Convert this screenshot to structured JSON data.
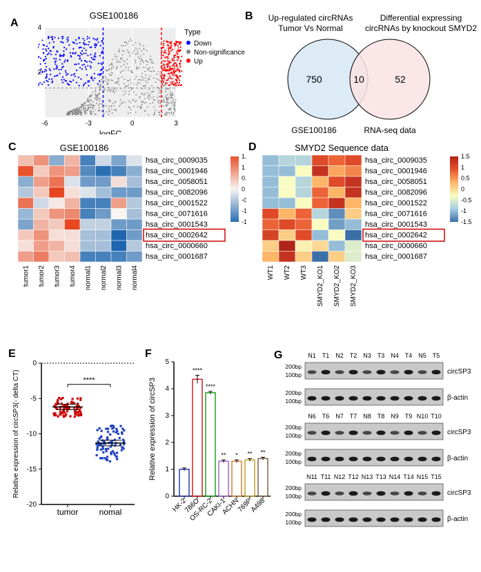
{
  "panelA": {
    "label": "A",
    "title": "GSE100186",
    "xlabel": "logFC",
    "ylabel": "logfdr",
    "legend_title": "Type",
    "legend_items": [
      "Down",
      "Non-significance",
      "Up"
    ],
    "legend_colors": [
      "#0000ff",
      "#808080",
      "#ff0000"
    ],
    "xlim": [
      -6,
      3
    ],
    "ylim": [
      0,
      4
    ],
    "xticks": [
      -6,
      -3,
      0,
      3
    ],
    "yticks": [
      2,
      4
    ],
    "threshold_lines_x": [
      -2,
      2
    ],
    "threshold_line_y": 1.3,
    "threshold_color": "#808080",
    "background_color": "#eeeeee",
    "grid_color": "#ffffff"
  },
  "panelB": {
    "label": "B",
    "left_title_line1": "Up-regulated circRNAs",
    "left_title_line2": "Tumor Vs Normal",
    "right_title_line1": "Differential expressing",
    "right_title_line2": "circRNAs by knockout SMYD2",
    "left_count": "750",
    "overlap_count": "10",
    "right_count": "52",
    "left_label": "GSE100186",
    "right_label": "RNA-seq data",
    "left_fill": "#d6e8f5",
    "right_fill": "#fae3e3"
  },
  "panelC": {
    "label": "C",
    "title": "GSE100186",
    "rows": [
      "hsa_circ_0009035",
      "hsa_circ_0001946",
      "hsa_circ_0058051",
      "hsa_circ_0082096",
      "hsa_circ_0001522",
      "hsa_circ_0071616",
      "hsa_circ_0001543",
      "hsa_circ_0002642",
      "hsa_circ_0000660",
      "hsa_circ_0001687"
    ],
    "cols": [
      "tumor1",
      "tumor2",
      "tumor3",
      "tumor4",
      "normal1",
      "normal2",
      "normal3",
      "normal4"
    ],
    "highlight_row_index": 7,
    "legend_min": -1.5,
    "legend_max": 1.5,
    "legend_ticks": [
      1.5,
      1,
      0.5,
      0,
      -0.5,
      -1,
      -1.5
    ],
    "colorscale_low": "#2b6fb3",
    "colorscale_mid": "#f7f4f2",
    "colorscale_high": "#e8522d",
    "data": [
      [
        0.5,
        0.9,
        -0.8,
        0.6,
        -1.3,
        -0.3,
        -0.9,
        -0.2
      ],
      [
        1.5,
        0.4,
        0.9,
        0.8,
        -1.2,
        -1.5,
        -1.3,
        -0.8
      ],
      [
        -0.8,
        0.8,
        1.2,
        -0.2,
        -1.0,
        -1.0,
        0.2,
        -0.6
      ],
      [
        -0.5,
        0.4,
        1.6,
        0.2,
        -0.2,
        -0.6,
        -1.0,
        -1.0
      ],
      [
        1.2,
        -0.3,
        0.1,
        0.6,
        -1.3,
        -1.3,
        0.8,
        -0.5
      ],
      [
        -0.7,
        0.4,
        0.9,
        1.0,
        -1.3,
        -1.0,
        0.0,
        -0.6
      ],
      [
        -0.9,
        0.6,
        0.4,
        1.6,
        -0.4,
        -0.4,
        -1.0,
        -1.0
      ],
      [
        0.4,
        0.9,
        0.2,
        0.2,
        -0.6,
        -0.6,
        -1.6,
        -1.0
      ],
      [
        0.2,
        0.8,
        0.6,
        0.2,
        -0.6,
        -0.6,
        -1.6,
        -0.5
      ],
      [
        0.8,
        1.1,
        0.4,
        0.5,
        -1.3,
        -1.3,
        -1.3,
        -1.0
      ]
    ]
  },
  "panelD": {
    "label": "D",
    "title": "SMYD2  Sequence data",
    "rows": [
      "hsa_circ_0009035",
      "hsa_circ_0001946",
      "hsa_circ_0058051",
      "hsa_circ_0082096",
      "hsa_circ_0001522",
      "hsa_circ_0071616",
      "hsa_circ_0001543",
      "hsa_circ_0002642",
      "hsa_circ_0000660",
      "hsa_circ_0001687"
    ],
    "cols": [
      "WT1",
      "WT2",
      "WT3",
      "SMYD2_KO1",
      "SMYD2_KO2",
      "SMYD2_KO3"
    ],
    "highlight_row_index": 7,
    "legend_min": -1.5,
    "legend_max": 1.5,
    "legend_ticks": [
      1.5,
      1,
      0.5,
      0,
      -0.5,
      -1,
      -1.5
    ],
    "colorscale_stops": [
      "#3b6fa8",
      "#a7cde0",
      "#f8fcc0",
      "#fdb667",
      "#e8522d",
      "#b02418"
    ],
    "data": [
      [
        -1.0,
        -0.8,
        -0.8,
        1.0,
        0.8,
        1.0
      ],
      [
        -1.0,
        -1.0,
        -0.3,
        1.3,
        0.4,
        0.6
      ],
      [
        -1.0,
        -0.3,
        -0.8,
        0.3,
        1.0,
        1.3
      ],
      [
        -1.0,
        -0.3,
        -0.8,
        0.8,
        0.3,
        1.3
      ],
      [
        -1.0,
        -1.0,
        -0.3,
        0.8,
        1.3,
        0.3
      ],
      [
        1.0,
        0.3,
        0.8,
        -0.8,
        -1.3,
        0.1
      ],
      [
        0.8,
        1.0,
        0.8,
        -0.3,
        -1.2,
        -1.0
      ],
      [
        1.1,
        0.1,
        1.0,
        -1.0,
        -0.3,
        -1.5
      ],
      [
        0.1,
        1.6,
        -0.2,
        0.0,
        -1.0,
        -0.5
      ],
      [
        0.3,
        1.3,
        0.1,
        -1.5,
        0.1,
        -0.5
      ]
    ]
  },
  "panelE": {
    "label": "E",
    "ylabel": "Relative expression of circSP3(- delta CT)",
    "groups": [
      "tumor",
      "nomal"
    ],
    "sig": "****",
    "ylim": [
      -20,
      0
    ],
    "yticks": [
      0,
      -5,
      -10,
      -15,
      -20
    ],
    "colors": [
      "#cc0000",
      "#2040c0"
    ],
    "tumor_mean": -6.2,
    "normal_mean": -11.3
  },
  "panelF": {
    "label": "F",
    "ylabel": "Relative expression of circSP3",
    "categories": [
      "HK-2",
      "786O",
      "OS-RC-2",
      "CAKI-1",
      "ACHN",
      "769P",
      "A498"
    ],
    "values": [
      1.0,
      4.35,
      3.85,
      1.3,
      1.3,
      1.35,
      1.4
    ],
    "errors": [
      0.05,
      0.15,
      0.05,
      0.05,
      0.05,
      0.05,
      0.05
    ],
    "sig": [
      "",
      "****",
      "****",
      "**",
      "*",
      "**",
      "**"
    ],
    "colors": [
      "#2b3fb0",
      "#d02020",
      "#20a020",
      "#a06ac0",
      "#d08030",
      "#c0a030",
      "#806040"
    ],
    "ylim": [
      0,
      5
    ],
    "yticks": [
      0,
      1,
      2,
      3,
      4,
      5
    ]
  },
  "panelG": {
    "label": "G",
    "size_labels": [
      "200bp",
      "100bp"
    ],
    "band_labels": [
      "circSP3",
      "β-actin"
    ],
    "sets": [
      {
        "lanes": [
          "N1",
          "T1",
          "N2",
          "T2",
          "N3",
          "T3",
          "N4",
          "T4",
          "N5",
          "T5"
        ]
      },
      {
        "lanes": [
          "N6",
          "T6",
          "N7",
          "T7",
          "N8",
          "T8",
          "N9",
          "T9",
          "N10",
          "T10"
        ]
      },
      {
        "lanes": [
          "N11",
          "T11",
          "N12",
          "T12",
          "N13",
          "T13",
          "N14",
          "T14",
          "N15",
          "T15"
        ]
      }
    ],
    "band_bg": "#c9c9c9",
    "band_dark": "#1a1a1a"
  }
}
